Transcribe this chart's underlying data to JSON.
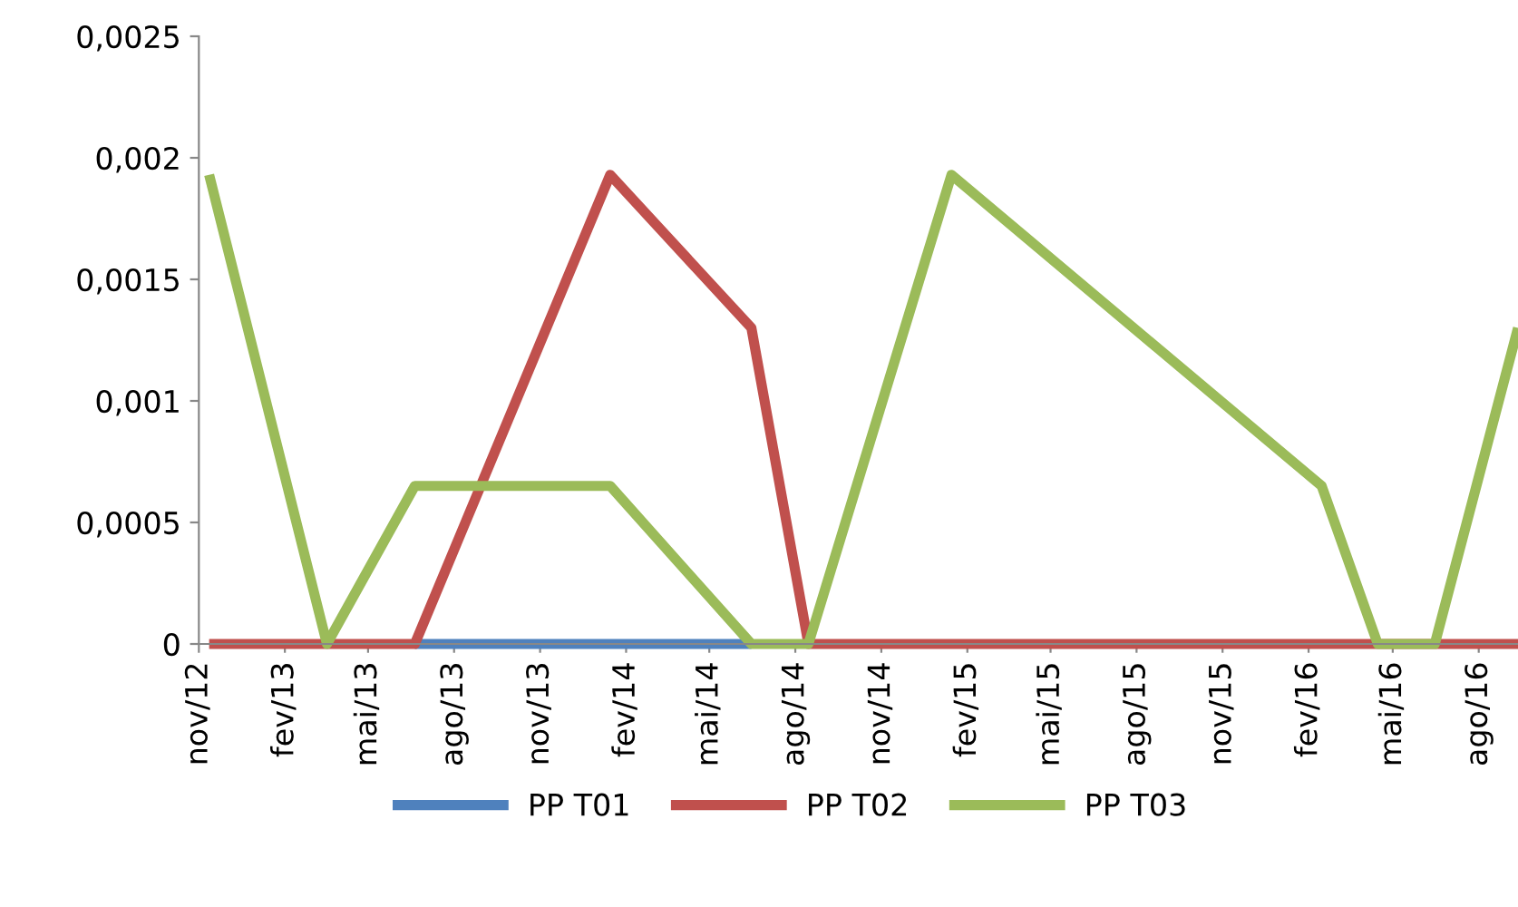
{
  "chart_data": {
    "type": "line",
    "x": [
      "2012-11-12",
      "2013-03-18",
      "2013-06-20",
      "2014-01-15",
      "2014-06-15",
      "2014-08-15",
      "2015-01-15",
      "2016-02-15",
      "2016-04-15",
      "2016-06-15",
      "2016-09-12"
    ],
    "series": [
      {
        "name": "PP T01",
        "color": "#4f81bd",
        "values": [
          null,
          null,
          0,
          0,
          0,
          null,
          null,
          null,
          null,
          null,
          null
        ]
      },
      {
        "name": "PP T02",
        "color": "#c0504d",
        "values": [
          0,
          0,
          0,
          0.00193,
          0.0013,
          0,
          0,
          0,
          0,
          0,
          0
        ]
      },
      {
        "name": "PP T03",
        "color": "#9bbb59",
        "values": [
          0.00193,
          0,
          0.00065,
          0.00065,
          0,
          0,
          0.00193,
          0.00065,
          0,
          0,
          0.0013
        ]
      }
    ],
    "xlim": [
      "2012-11-01",
      "2016-09-12"
    ],
    "xticks": [
      {
        "value": "2012-11-01",
        "label": "nov/12"
      },
      {
        "value": "2013-02-01",
        "label": "fev/13"
      },
      {
        "value": "2013-05-01",
        "label": "mai/13"
      },
      {
        "value": "2013-08-01",
        "label": "ago/13"
      },
      {
        "value": "2013-11-01",
        "label": "nov/13"
      },
      {
        "value": "2014-02-01",
        "label": "fev/14"
      },
      {
        "value": "2014-05-01",
        "label": "mai/14"
      },
      {
        "value": "2014-08-01",
        "label": "ago/14"
      },
      {
        "value": "2014-11-01",
        "label": "nov/14"
      },
      {
        "value": "2015-02-01",
        "label": "fev/15"
      },
      {
        "value": "2015-05-01",
        "label": "mai/15"
      },
      {
        "value": "2015-08-01",
        "label": "ago/15"
      },
      {
        "value": "2015-11-01",
        "label": "nov/15"
      },
      {
        "value": "2016-02-01",
        "label": "fev/16"
      },
      {
        "value": "2016-05-01",
        "label": "mai/16"
      },
      {
        "value": "2016-08-01",
        "label": "ago/16"
      }
    ],
    "ylim": [
      0,
      0.0025
    ],
    "yticks": [
      0,
      {
        "value": 0.0005,
        "label": "0,0005"
      },
      {
        "value": 0.001,
        "label": "0,001"
      },
      {
        "value": 0.0015,
        "label": "0,0015"
      },
      {
        "value": 0.002,
        "label": "0,002"
      },
      {
        "value": 0.0025,
        "label": "0,0025"
      }
    ],
    "legend": "bottom",
    "grid": false,
    "marker": "none",
    "line_style": "solid"
  }
}
